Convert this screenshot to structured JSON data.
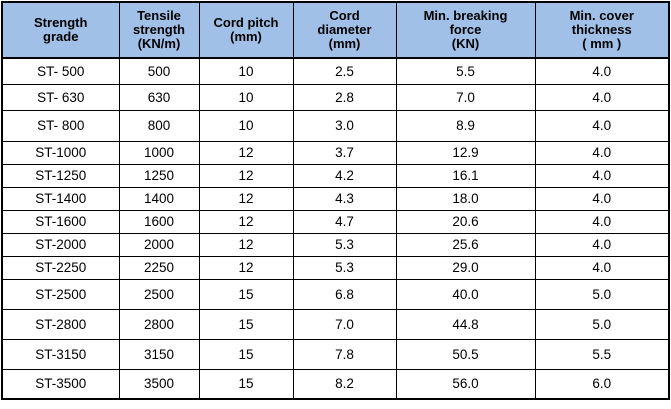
{
  "chart_data": {
    "type": "table",
    "columns": [
      "Strength grade",
      "Tensile strength (KN/m)",
      "Cord pitch (mm)",
      "Cord diameter (mm)",
      "Min. breaking force (KN)",
      "Min. cover thickness ( mm )"
    ],
    "rows": [
      [
        "ST- 500",
        "500",
        "10",
        "2.5",
        "5.5",
        "4.0"
      ],
      [
        "ST- 630",
        "630",
        "10",
        "2.8",
        "7.0",
        "4.0"
      ],
      [
        "ST- 800",
        "800",
        "10",
        "3.0",
        "8.9",
        "4.0"
      ],
      [
        "ST-1000",
        "1000",
        "12",
        "3.7",
        "12.9",
        "4.0"
      ],
      [
        "ST-1250",
        "1250",
        "12",
        "4.2",
        "16.1",
        "4.0"
      ],
      [
        "ST-1400",
        "1400",
        "12",
        "4.3",
        "18.0",
        "4.0"
      ],
      [
        "ST-1600",
        "1600",
        "12",
        "4.7",
        "20.6",
        "4.0"
      ],
      [
        "ST-2000",
        "2000",
        "12",
        "5.3",
        "25.6",
        "4.0"
      ],
      [
        "ST-2250",
        "2250",
        "12",
        "5.3",
        "29.0",
        "4.0"
      ],
      [
        "ST-2500",
        "2500",
        "15",
        "6.8",
        "40.0",
        "5.0"
      ],
      [
        "ST-2800",
        "2800",
        "15",
        "7.0",
        "44.8",
        "5.0"
      ],
      [
        "ST-3150",
        "3150",
        "15",
        "7.8",
        "50.5",
        "5.5"
      ],
      [
        "ST-3500",
        "3500",
        "15",
        "8.2",
        "56.0",
        "6.0"
      ]
    ]
  },
  "display": {
    "header_lines": [
      "Strength\ngrade",
      "Tensile\nstrength\n(KN/m)",
      "Cord pitch\n(mm)",
      "Cord\ndiameter\n(mm)",
      "Min. breaking\nforce\n(KN)",
      "Min. cover\nthickness\n( mm )"
    ],
    "colors": {
      "header_bg": "#a0c0e8",
      "border": "#000000",
      "text": "#000000"
    }
  }
}
